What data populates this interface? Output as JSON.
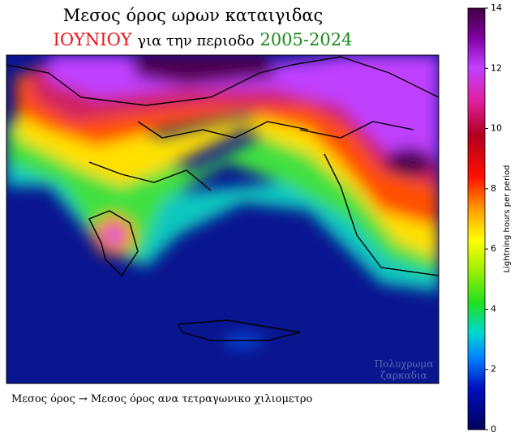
{
  "title": {
    "line1": "Μεσος όρος ωρων καταιγιδας",
    "month": "ΙΟΥΝΙΟΥ",
    "middle": "για την περιοδο",
    "period": "2005-2024"
  },
  "colorbar": {
    "label": "Lightning hours per period",
    "lim": [
      0,
      14
    ],
    "ticks": [
      0,
      2,
      4,
      6,
      8,
      10,
      12,
      14
    ]
  },
  "watermark": [
    "Πολυχρωμα",
    "ζαρκαδια"
  ],
  "caption": "Μεσος όρος → Μεσος όρος ανα τετραγωνικο χιλιομετρο"
}
